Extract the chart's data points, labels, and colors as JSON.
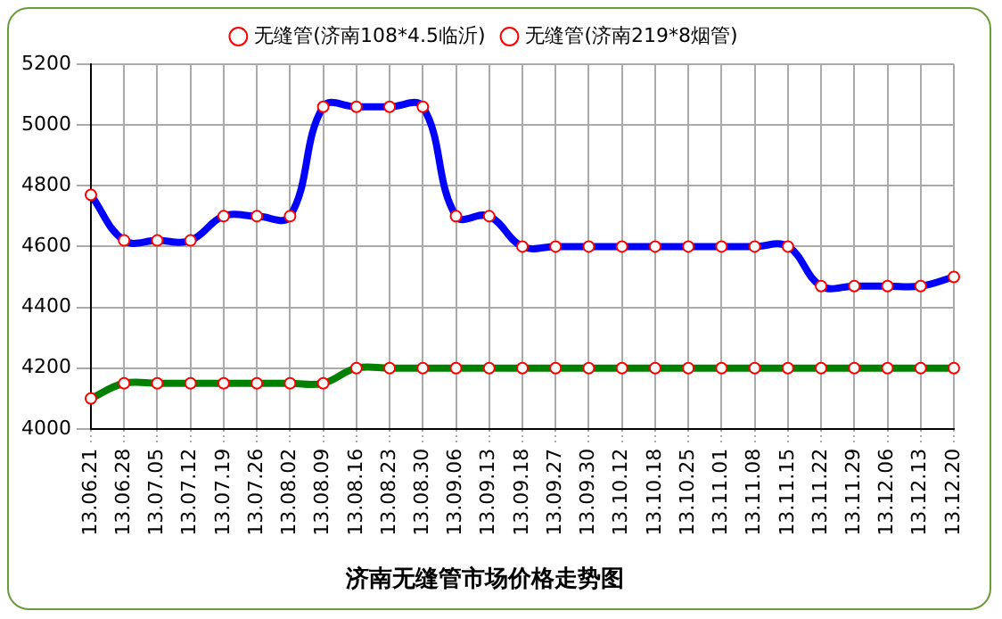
{
  "chart_data": {
    "type": "line",
    "title": "济南无缝管市场价格走势图",
    "categories": [
      "13.06.21",
      "13.06.28",
      "13.07.05",
      "13.07.12",
      "13.07.19",
      "13.07.26",
      "13.08.02",
      "13.08.09",
      "13.08.16",
      "13.08.23",
      "13.08.30",
      "13.09.06",
      "13.09.13",
      "13.09.18",
      "13.09.27",
      "13.09.30",
      "13.10.12",
      "13.10.18",
      "13.10.25",
      "13.11.01",
      "13.11.08",
      "13.11.15",
      "13.11.22",
      "13.11.29",
      "13.12.06",
      "13.12.13",
      "13.12.20"
    ],
    "series": [
      {
        "name": "无缝管(济南108*4.5临沂)",
        "color": "#008000",
        "values": [
          4100,
          4150,
          4150,
          4150,
          4150,
          4150,
          4150,
          4150,
          4200,
          4200,
          4200,
          4200,
          4200,
          4200,
          4200,
          4200,
          4200,
          4200,
          4200,
          4200,
          4200,
          4200,
          4200,
          4200,
          4200,
          4200,
          4200
        ]
      },
      {
        "name": "无缝管(济南219*8烟管)",
        "color": "#0000ff",
        "values": [
          4770,
          4620,
          4620,
          4620,
          4700,
          4700,
          4700,
          5060,
          5060,
          5060,
          5060,
          4700,
          4700,
          4600,
          4600,
          4600,
          4600,
          4600,
          4600,
          4600,
          4600,
          4600,
          4470,
          4470,
          4470,
          4470,
          4500
        ]
      }
    ],
    "ylim": [
      4000,
      5200
    ],
    "yticks": [
      4000,
      4200,
      4400,
      4600,
      4800,
      5000,
      5200
    ],
    "grid": true,
    "legend": "top",
    "marker": "circle",
    "line_style": "solid"
  }
}
